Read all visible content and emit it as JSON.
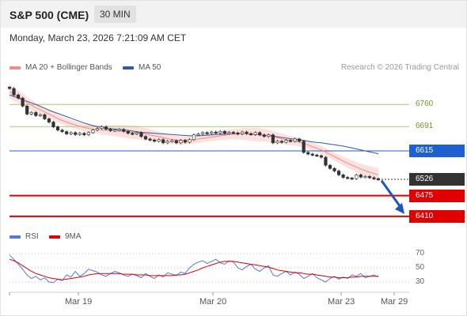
{
  "header": {
    "symbol": "S&P 500 (CME)",
    "timeframe": "30 MIN"
  },
  "datetime": "Monday, March 23, 2026 7:21:09 AM CET",
  "legend": {
    "items": [
      {
        "label": "MA 20 + Bollinger Bands",
        "color": "#f28b82"
      },
      {
        "label": "MA 50",
        "color": "#2f5aa8"
      }
    ],
    "credit": "Research © 2026 Trading Central"
  },
  "rsi_legend": {
    "items": [
      {
        "label": "RSI",
        "color": "#5577dd"
      },
      {
        "label": "9MA",
        "color": "#e00000"
      }
    ]
  },
  "chart_data": [
    {
      "type": "candlestick",
      "x_axis_labels": [
        "Mar 19",
        "Mar 20",
        "Mar 23",
        "Mar 29"
      ],
      "ylim": [
        6395,
        6815
      ],
      "levels": [
        {
          "value": 6760,
          "label": "6760",
          "style": "line",
          "color": "#a6cc6e"
        },
        {
          "value": 6691,
          "label": "6691",
          "style": "line",
          "color": "#a6cc6e"
        },
        {
          "value": 6615,
          "label": "6615",
          "style": "box",
          "color": "#1e5fd1"
        },
        {
          "value": 6526,
          "label": "6526",
          "style": "box",
          "color": "#333333"
        },
        {
          "value": 6475,
          "label": "6475",
          "style": "box",
          "color": "#e00000"
        },
        {
          "value": 6410,
          "label": "6410",
          "style": "box",
          "color": "#e00000"
        }
      ],
      "close": [
        6810,
        6790,
        6780,
        6755,
        6730,
        6735,
        6725,
        6728,
        6715,
        6705,
        6690,
        6680,
        6675,
        6668,
        6672,
        6666,
        6670,
        6665,
        6672,
        6680,
        6685,
        6690,
        6683,
        6678,
        6680,
        6682,
        6676,
        6670,
        6668,
        6672,
        6660,
        6652,
        6649,
        6645,
        6650,
        6640,
        6645,
        6647,
        6640,
        6648,
        6642,
        6650,
        6665,
        6668,
        6672,
        6670,
        6674,
        6671,
        6676,
        6670,
        6673,
        6671,
        6668,
        6674,
        6669,
        6666,
        6672,
        6665,
        6660,
        6665,
        6640,
        6645,
        6642,
        6648,
        6645,
        6652,
        6645,
        6610,
        6605,
        6602,
        6600,
        6595,
        6570,
        6560,
        6552,
        6540,
        6532,
        6530,
        6528,
        6540,
        6533,
        6535,
        6531,
        6528,
        6526
      ],
      "series": [
        {
          "name": "MA 20",
          "values": [
            6800,
            6792,
            6784,
            6776,
            6766,
            6758,
            6750,
            6744,
            6737,
            6730,
            6723,
            6716,
            6710,
            6705,
            6700,
            6696,
            6692,
            6688,
            6685,
            6683,
            6682,
            6681,
            6680,
            6679,
            6678,
            6677,
            6676,
            6674,
            6673,
            6672,
            6670,
            6668,
            6665,
            6662,
            6659,
            6656,
            6653,
            6651,
            6649,
            6648,
            6648,
            6649,
            6650,
            6652,
            6654,
            6656,
            6658,
            6660,
            6662,
            6664,
            6666,
            6667,
            6668,
            6668,
            6668,
            6667,
            6666,
            6665,
            6664,
            6662,
            6659,
            6656,
            6653,
            6650,
            6647,
            6645,
            6642,
            6638,
            6633,
            6628,
            6623,
            6618,
            6611,
            6604,
            6597,
            6590,
            6583,
            6576,
            6570,
            6564,
            6558,
            6553,
            6548,
            6544,
            6540
          ]
        },
        {
          "name": "MA 50",
          "values": [
            6790,
            6785,
            6780,
            6775,
            6770,
            6765,
            6760,
            6754,
            6748,
            6742,
            6737,
            6732,
            6727,
            6722,
            6717,
            6712,
            6707,
            6702,
            6698,
            6694,
            6691,
            6688,
            6686,
            6684,
            6683,
            6682,
            6681,
            6679,
            6677,
            6675,
            6673,
            6672,
            6671,
            6670,
            6669,
            6668,
            6667,
            6666,
            6665,
            6664,
            6663,
            6662,
            6662,
            6662,
            6663,
            6664,
            6665,
            6666,
            6666,
            6667,
            6667,
            6668,
            6668,
            6668,
            6668,
            6667,
            6666,
            6665,
            6664,
            6663,
            6661,
            6659,
            6657,
            6655,
            6653,
            6652,
            6650,
            6648,
            6645,
            6643,
            6641,
            6640,
            6638,
            6636,
            6634,
            6632,
            6630,
            6627,
            6624,
            6621,
            6618,
            6615,
            6612,
            6609,
            6606
          ]
        }
      ]
    },
    {
      "type": "line",
      "y_tick_labels": [
        "70",
        "50",
        "30"
      ],
      "ylim": [
        20,
        80
      ],
      "series": [
        {
          "name": "RSI",
          "values": [
            68,
            62,
            55,
            48,
            40,
            35,
            38,
            33,
            36,
            30,
            29,
            34,
            32,
            40,
            37,
            45,
            38,
            42,
            48,
            46,
            44,
            40,
            38,
            42,
            45,
            43,
            40,
            38,
            41,
            39,
            36,
            42,
            38,
            35,
            40,
            37,
            43,
            41,
            39,
            44,
            42,
            50,
            55,
            58,
            60,
            56,
            59,
            62,
            57,
            55,
            60,
            58,
            50,
            47,
            52,
            55,
            48,
            45,
            50,
            53,
            40,
            38,
            42,
            45,
            40,
            44,
            41,
            35,
            38,
            42,
            36,
            33,
            30,
            35,
            38,
            34,
            37,
            35,
            40,
            38,
            42,
            36,
            38,
            40,
            37
          ]
        },
        {
          "name": "9MA",
          "values": [
            62,
            60,
            57,
            53,
            49,
            45,
            42,
            40,
            38,
            36,
            35,
            34,
            33,
            34,
            35,
            36,
            37,
            38,
            40,
            41,
            42,
            42,
            42,
            42,
            42,
            42,
            41,
            41,
            41,
            40,
            40,
            40,
            39,
            39,
            39,
            39,
            39,
            39,
            40,
            40,
            41,
            43,
            45,
            47,
            50,
            52,
            54,
            56,
            58,
            59,
            59,
            59,
            58,
            57,
            56,
            55,
            54,
            53,
            52,
            51,
            49,
            47,
            46,
            45,
            44,
            43,
            43,
            42,
            41,
            41,
            40,
            39,
            38,
            37,
            37,
            36,
            36,
            36,
            37,
            37,
            38,
            38,
            38,
            38,
            38
          ]
        }
      ]
    }
  ]
}
